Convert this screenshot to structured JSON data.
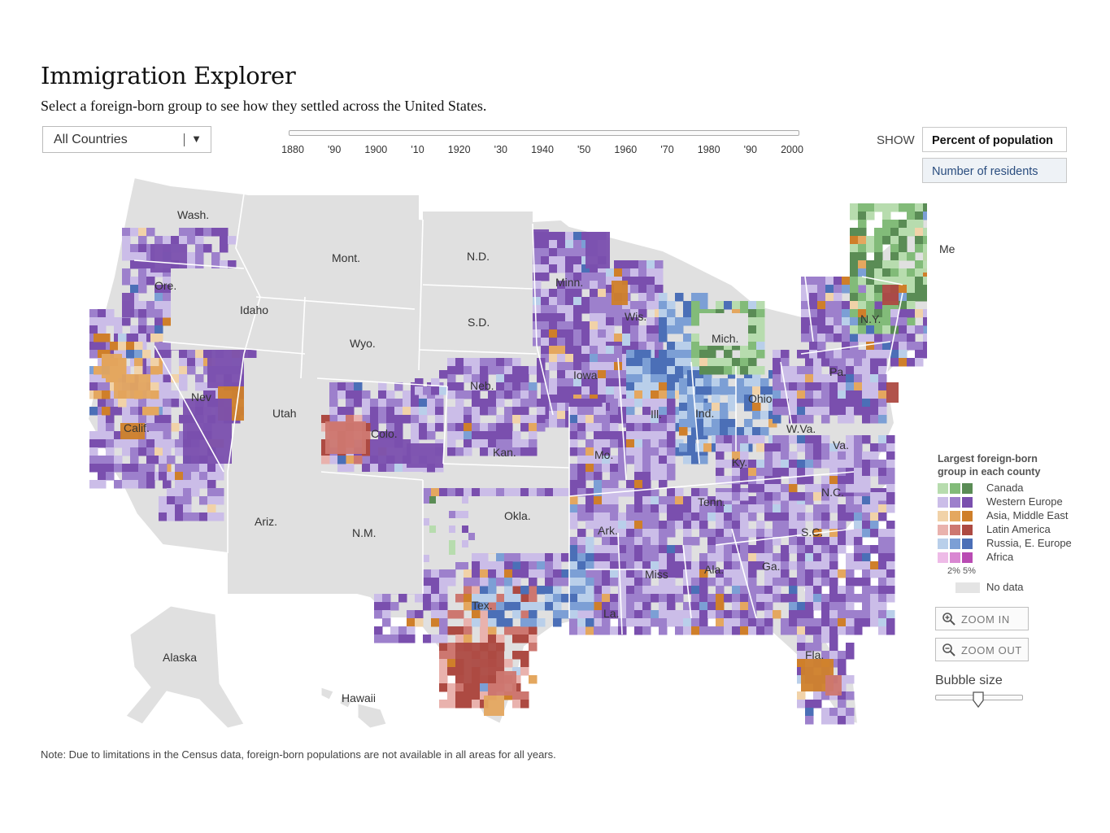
{
  "header": {
    "title": "Immigration Explorer",
    "subtitle": "Select a foreign-born group to see how they settled across the United States."
  },
  "selector": {
    "value": "All Countries",
    "arrow": "▼"
  },
  "timeline": {
    "ticks": [
      "1880",
      "'90",
      "1900",
      "'10",
      "1920",
      "'30",
      "1940",
      "'50",
      "1960",
      "'70",
      "1980",
      "'90",
      "2000"
    ],
    "selected": "1880",
    "selected_fraction": 0
  },
  "show": {
    "label": "SHOW",
    "options": [
      "Percent of population",
      "Number of residents"
    ],
    "selected": "Percent of population"
  },
  "map": {
    "state_labels": [
      "Wash.",
      "Mont.",
      "N.D.",
      "Ore.",
      "Idaho",
      "S.D.",
      "Wyo.",
      "Minn.",
      "Wis.",
      "Me",
      "N.Y.",
      "Mich.",
      "Iowa",
      "Neb.",
      "Nev",
      "Utah",
      "Calif.",
      "Colo.",
      "Kan.",
      "Ill.",
      "Ind.",
      "Ohio",
      "Pa.",
      "W.Va.",
      "Va.",
      "Mo.",
      "Ky.",
      "Okla.",
      "Ariz.",
      "N.M.",
      "Tenn.",
      "N.C.",
      "Ark.",
      "S.C.",
      "Ala.",
      "Ga.",
      "Miss",
      "Tex.",
      "La.",
      "Fla.",
      "Alaska",
      "Hawaii"
    ]
  },
  "legend": {
    "title": "Largest foreign-born group in each county",
    "groups": [
      {
        "label": "Canada",
        "colors": [
          "#b7dcae",
          "#82bb79",
          "#5a8c55"
        ]
      },
      {
        "label": "Western Europe",
        "colors": [
          "#cbbde8",
          "#9d80cc",
          "#7a4fae"
        ]
      },
      {
        "label": "Asia, Middle East",
        "colors": [
          "#f1d2a8",
          "#e4a75f",
          "#cf7f2a"
        ]
      },
      {
        "label": "Latin America",
        "colors": [
          "#e9b2ad",
          "#cd7770",
          "#ad4a42"
        ]
      },
      {
        "label": "Russia, E. Europe",
        "colors": [
          "#b9cfea",
          "#7c9fd5",
          "#4b6fb7"
        ]
      },
      {
        "label": "Africa",
        "colors": [
          "#eebbe7",
          "#d987d2",
          "#b94bb3"
        ]
      }
    ],
    "scale_label": "2% 5%",
    "no_data": "No data",
    "no_data_color": "#e4e4e4"
  },
  "zoom": {
    "in_label": "ZOOM IN",
    "out_label": "ZOOM OUT",
    "in_icon": "zoom-in-icon",
    "out_icon": "zoom-out-icon"
  },
  "bubble": {
    "label": "Bubble size",
    "value_fraction": 0.5
  },
  "note": "Note: Due to limitations in the Census data, foreign-born  populations are not available in all areas for all years."
}
